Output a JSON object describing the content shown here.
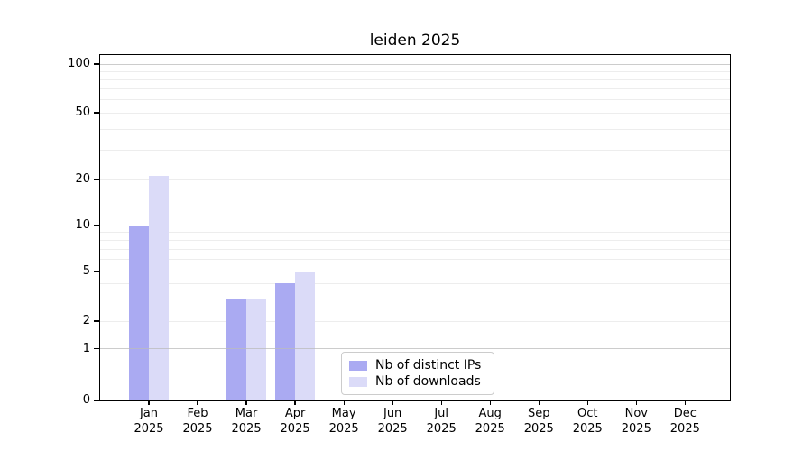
{
  "chart_data": {
    "type": "bar",
    "title": "leiden 2025",
    "categories": [
      "Jan 2025",
      "Feb 2025",
      "Mar 2025",
      "Apr 2025",
      "May 2025",
      "Jun 2025",
      "Jul 2025",
      "Aug 2025",
      "Sep 2025",
      "Oct 2025",
      "Nov 2025",
      "Dec 2025"
    ],
    "months": [
      "Jan",
      "Feb",
      "Mar",
      "Apr",
      "May",
      "Jun",
      "Jul",
      "Aug",
      "Sep",
      "Oct",
      "Nov",
      "Dec"
    ],
    "year": "2025",
    "series": [
      {
        "name": "Nb of distinct IPs",
        "color": "#aaaaf2",
        "values": [
          10,
          0,
          3,
          4,
          0,
          0,
          0,
          0,
          0,
          0,
          0,
          0
        ]
      },
      {
        "name": "Nb of downloads",
        "color": "#dbdbf8",
        "values": [
          21,
          0,
          3,
          5,
          0,
          0,
          0,
          0,
          0,
          0,
          0,
          0
        ]
      }
    ],
    "y_axis": {
      "ticks": [
        0,
        1,
        2,
        5,
        10,
        20,
        50,
        100
      ],
      "scale": "log-like",
      "range": [
        0,
        100
      ]
    },
    "grid": true,
    "legend_position": "inside-bottom-center"
  },
  "colors": {
    "bar_ips": "#aaaaf2",
    "bar_downloads": "#dbdbf8",
    "grid_major": "#bbbbbb",
    "grid_minor": "#ededed",
    "axis": "#000000",
    "legend_border": "#cccccc"
  }
}
